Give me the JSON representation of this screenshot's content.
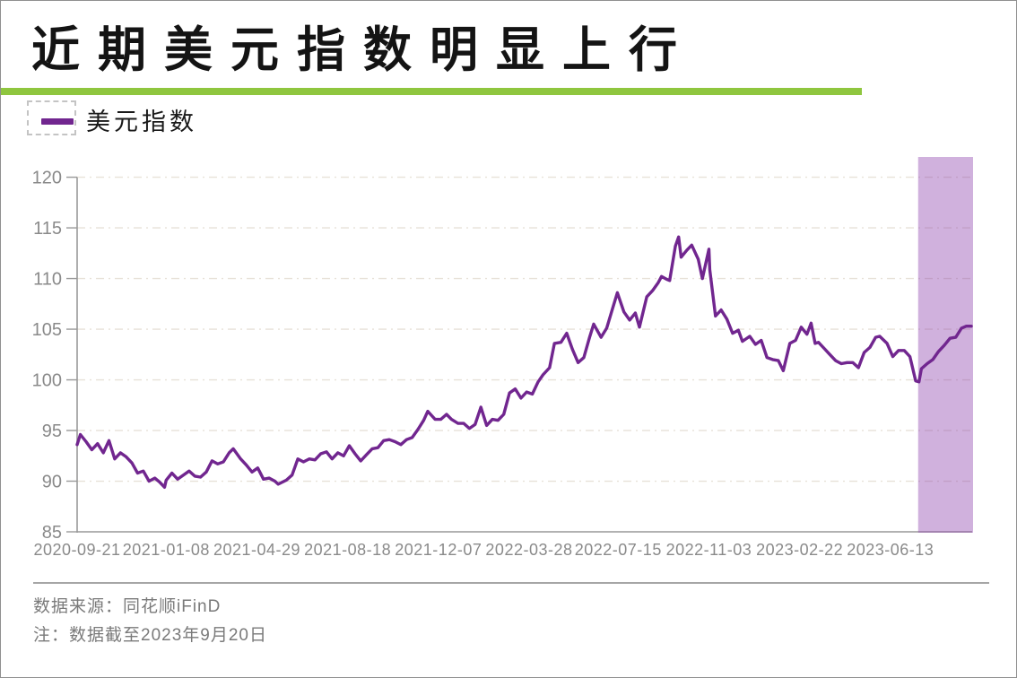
{
  "page": {
    "title": "近期美元指数明显上行",
    "legend_label": "美元指数",
    "source_line": "数据来源：同花顺iFinD",
    "note_line": "注：数据截至2023年9月20日"
  },
  "colors": {
    "accent_green": "#8FC63F",
    "line_purple": "#71268F",
    "band_fill": "#8E44AD",
    "axis_gray": "#999999",
    "tick_label_gray": "#8a8a8a",
    "gridline": "#E7E1D8",
    "title_black": "#141414",
    "footnote_gray": "#7a7a7a"
  },
  "chart_data": {
    "type": "line",
    "title": "近期美元指数明显上行",
    "xlabel": "",
    "ylabel": "",
    "ylim": [
      85,
      122
    ],
    "y_ticks": [
      85,
      90,
      95,
      100,
      105,
      110,
      115,
      120
    ],
    "xlim": [
      "2020-09-21",
      "2023-09-20"
    ],
    "x_tick_labels": [
      "2020-09-21",
      "2021-01-08",
      "2021-04-29",
      "2021-08-18",
      "2021-12-07",
      "2022-03-28",
      "2022-07-15",
      "2022-11-03",
      "2023-02-22",
      "2023-06-13"
    ],
    "grid": "horizontal-dash-dot",
    "legend_position": "top-left",
    "highlight_band": {
      "from": "2023-07-17",
      "to": "2023-09-20",
      "fill": "#8E44AD",
      "opacity": 0.42
    },
    "series": [
      {
        "name": "美元指数",
        "color": "#71268F",
        "points": [
          [
            "2020-09-21",
            93.6
          ],
          [
            "2020-09-25",
            94.6
          ],
          [
            "2020-10-02",
            93.9
          ],
          [
            "2020-10-09",
            93.1
          ],
          [
            "2020-10-16",
            93.7
          ],
          [
            "2020-10-23",
            92.8
          ],
          [
            "2020-10-30",
            94.0
          ],
          [
            "2020-11-06",
            92.2
          ],
          [
            "2020-11-13",
            92.8
          ],
          [
            "2020-11-20",
            92.4
          ],
          [
            "2020-11-27",
            91.8
          ],
          [
            "2020-12-04",
            90.8
          ],
          [
            "2020-12-11",
            91.0
          ],
          [
            "2020-12-18",
            90.0
          ],
          [
            "2020-12-25",
            90.3
          ],
          [
            "2020-12-31",
            89.9
          ],
          [
            "2021-01-06",
            89.4
          ],
          [
            "2021-01-08",
            90.1
          ],
          [
            "2021-01-15",
            90.8
          ],
          [
            "2021-01-22",
            90.2
          ],
          [
            "2021-01-29",
            90.6
          ],
          [
            "2021-02-05",
            91.0
          ],
          [
            "2021-02-12",
            90.5
          ],
          [
            "2021-02-19",
            90.4
          ],
          [
            "2021-02-26",
            90.9
          ],
          [
            "2021-03-05",
            92.0
          ],
          [
            "2021-03-12",
            91.7
          ],
          [
            "2021-03-19",
            91.9
          ],
          [
            "2021-03-26",
            92.8
          ],
          [
            "2021-03-31",
            93.2
          ],
          [
            "2021-04-09",
            92.2
          ],
          [
            "2021-04-16",
            91.6
          ],
          [
            "2021-04-23",
            90.9
          ],
          [
            "2021-04-30",
            91.3
          ],
          [
            "2021-05-07",
            90.2
          ],
          [
            "2021-05-14",
            90.3
          ],
          [
            "2021-05-21",
            90.0
          ],
          [
            "2021-05-25",
            89.7
          ],
          [
            "2021-06-04",
            90.1
          ],
          [
            "2021-06-11",
            90.6
          ],
          [
            "2021-06-18",
            92.2
          ],
          [
            "2021-06-25",
            91.9
          ],
          [
            "2021-07-02",
            92.2
          ],
          [
            "2021-07-09",
            92.1
          ],
          [
            "2021-07-16",
            92.7
          ],
          [
            "2021-07-23",
            92.9
          ],
          [
            "2021-07-30",
            92.2
          ],
          [
            "2021-08-06",
            92.8
          ],
          [
            "2021-08-13",
            92.5
          ],
          [
            "2021-08-20",
            93.5
          ],
          [
            "2021-08-27",
            92.7
          ],
          [
            "2021-09-03",
            92.0
          ],
          [
            "2021-09-10",
            92.6
          ],
          [
            "2021-09-17",
            93.2
          ],
          [
            "2021-09-24",
            93.3
          ],
          [
            "2021-10-01",
            94.0
          ],
          [
            "2021-10-08",
            94.1
          ],
          [
            "2021-10-15",
            93.9
          ],
          [
            "2021-10-22",
            93.6
          ],
          [
            "2021-10-29",
            94.1
          ],
          [
            "2021-11-05",
            94.3
          ],
          [
            "2021-11-12",
            95.1
          ],
          [
            "2021-11-19",
            96.0
          ],
          [
            "2021-11-24",
            96.9
          ],
          [
            "2021-12-03",
            96.1
          ],
          [
            "2021-12-10",
            96.1
          ],
          [
            "2021-12-17",
            96.6
          ],
          [
            "2021-12-23",
            96.1
          ],
          [
            "2021-12-31",
            95.7
          ],
          [
            "2022-01-07",
            95.7
          ],
          [
            "2022-01-14",
            95.2
          ],
          [
            "2022-01-21",
            95.6
          ],
          [
            "2022-01-28",
            97.3
          ],
          [
            "2022-02-04",
            95.5
          ],
          [
            "2022-02-11",
            96.1
          ],
          [
            "2022-02-18",
            96.0
          ],
          [
            "2022-02-25",
            96.6
          ],
          [
            "2022-03-04",
            98.7
          ],
          [
            "2022-03-11",
            99.1
          ],
          [
            "2022-03-18",
            98.2
          ],
          [
            "2022-03-25",
            98.8
          ],
          [
            "2022-04-01",
            98.6
          ],
          [
            "2022-04-08",
            99.8
          ],
          [
            "2022-04-14",
            100.5
          ],
          [
            "2022-04-22",
            101.2
          ],
          [
            "2022-04-28",
            103.6
          ],
          [
            "2022-05-06",
            103.7
          ],
          [
            "2022-05-13",
            104.6
          ],
          [
            "2022-05-20",
            103.0
          ],
          [
            "2022-05-27",
            101.7
          ],
          [
            "2022-06-03",
            102.2
          ],
          [
            "2022-06-10",
            104.2
          ],
          [
            "2022-06-15",
            105.5
          ],
          [
            "2022-06-24",
            104.2
          ],
          [
            "2022-07-01",
            105.1
          ],
          [
            "2022-07-08",
            107.0
          ],
          [
            "2022-07-14",
            108.6
          ],
          [
            "2022-07-22",
            106.7
          ],
          [
            "2022-07-29",
            105.9
          ],
          [
            "2022-08-05",
            106.6
          ],
          [
            "2022-08-10",
            105.2
          ],
          [
            "2022-08-19",
            108.2
          ],
          [
            "2022-08-26",
            108.8
          ],
          [
            "2022-09-02",
            109.6
          ],
          [
            "2022-09-06",
            110.2
          ],
          [
            "2022-09-13",
            109.9
          ],
          [
            "2022-09-16",
            109.8
          ],
          [
            "2022-09-23",
            113.2
          ],
          [
            "2022-09-27",
            114.1
          ],
          [
            "2022-09-30",
            112.1
          ],
          [
            "2022-10-07",
            112.8
          ],
          [
            "2022-10-13",
            113.3
          ],
          [
            "2022-10-21",
            111.9
          ],
          [
            "2022-10-26",
            110.0
          ],
          [
            "2022-11-03",
            112.9
          ],
          [
            "2022-11-04",
            110.9
          ],
          [
            "2022-11-11",
            106.3
          ],
          [
            "2022-11-18",
            106.9
          ],
          [
            "2022-11-25",
            106.0
          ],
          [
            "2022-12-02",
            104.6
          ],
          [
            "2022-12-09",
            104.9
          ],
          [
            "2022-12-14",
            103.8
          ],
          [
            "2022-12-23",
            104.3
          ],
          [
            "2022-12-30",
            103.5
          ],
          [
            "2023-01-06",
            103.9
          ],
          [
            "2023-01-13",
            102.2
          ],
          [
            "2023-01-20",
            102.0
          ],
          [
            "2023-01-27",
            101.9
          ],
          [
            "2023-02-02",
            100.9
          ],
          [
            "2023-02-10",
            103.6
          ],
          [
            "2023-02-17",
            103.9
          ],
          [
            "2023-02-24",
            105.2
          ],
          [
            "2023-03-03",
            104.5
          ],
          [
            "2023-03-08",
            105.6
          ],
          [
            "2023-03-13",
            103.6
          ],
          [
            "2023-03-17",
            103.7
          ],
          [
            "2023-03-24",
            103.1
          ],
          [
            "2023-03-31",
            102.5
          ],
          [
            "2023-04-07",
            101.9
          ],
          [
            "2023-04-14",
            101.6
          ],
          [
            "2023-04-21",
            101.7
          ],
          [
            "2023-04-28",
            101.7
          ],
          [
            "2023-05-05",
            101.2
          ],
          [
            "2023-05-12",
            102.7
          ],
          [
            "2023-05-19",
            103.2
          ],
          [
            "2023-05-26",
            104.2
          ],
          [
            "2023-05-31",
            104.3
          ],
          [
            "2023-06-09",
            103.6
          ],
          [
            "2023-06-16",
            102.3
          ],
          [
            "2023-06-23",
            102.9
          ],
          [
            "2023-06-30",
            102.9
          ],
          [
            "2023-07-07",
            102.3
          ],
          [
            "2023-07-14",
            99.9
          ],
          [
            "2023-07-18",
            99.8
          ],
          [
            "2023-07-21",
            101.1
          ],
          [
            "2023-07-28",
            101.6
          ],
          [
            "2023-08-04",
            102.0
          ],
          [
            "2023-08-11",
            102.8
          ],
          [
            "2023-08-18",
            103.4
          ],
          [
            "2023-08-25",
            104.1
          ],
          [
            "2023-09-01",
            104.2
          ],
          [
            "2023-09-08",
            105.1
          ],
          [
            "2023-09-14",
            105.3
          ],
          [
            "2023-09-20",
            105.3
          ]
        ]
      }
    ]
  }
}
